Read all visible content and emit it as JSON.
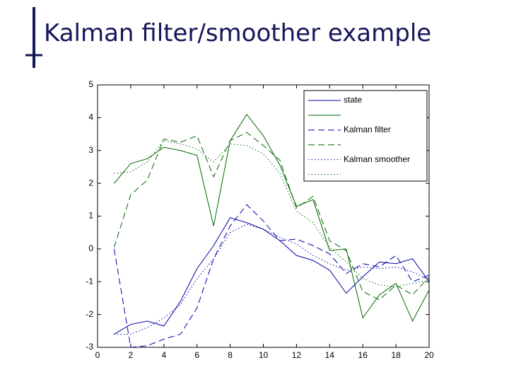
{
  "slide_title": "Kalman filter/smoother example",
  "chart_data": {
    "type": "line",
    "x": [
      1,
      2,
      3,
      4,
      5,
      6,
      7,
      8,
      9,
      10,
      11,
      12,
      13,
      14,
      15,
      16,
      17,
      18,
      19,
      20
    ],
    "xlim": [
      0,
      20
    ],
    "xticks": [
      0,
      2,
      4,
      6,
      8,
      10,
      12,
      14,
      16,
      18,
      20
    ],
    "ylim": [
      -3,
      5
    ],
    "yticks": [
      -3,
      -2,
      -1,
      0,
      1,
      2,
      3,
      4,
      5
    ],
    "grid": false,
    "legend": "upper right",
    "series": [
      {
        "name": "state",
        "color": "#0000aa",
        "dash": "solid",
        "values": [
          -2.6,
          -2.3,
          -2.2,
          -2.35,
          -1.6,
          -0.6,
          0.1,
          0.95,
          0.8,
          0.6,
          0.25,
          -0.2,
          -0.35,
          -0.65,
          -1.35,
          -0.85,
          -0.4,
          -0.45,
          -0.3,
          -1.0
        ]
      },
      {
        "color": "#006600",
        "dash": "solid",
        "values": [
          2.0,
          2.6,
          2.75,
          3.1,
          3.0,
          2.85,
          0.7,
          3.3,
          4.1,
          3.45,
          2.55,
          1.3,
          1.5,
          -0.05,
          0.0,
          -2.1,
          -1.4,
          -1.05,
          -2.2,
          -1.25
        ]
      },
      {
        "name": "Kalman filter",
        "color": "#0000aa",
        "dash": "dashed",
        "values": [
          0.0,
          -3.0,
          -2.95,
          -2.75,
          -2.6,
          -1.8,
          -0.3,
          0.7,
          1.35,
          0.85,
          0.25,
          0.3,
          0.1,
          -0.15,
          -0.75,
          -0.45,
          -0.55,
          -0.2,
          -1.0,
          -0.8
        ]
      },
      {
        "color": "#006600",
        "dash": "dashed",
        "values": [
          0.05,
          1.65,
          2.1,
          3.35,
          3.25,
          3.45,
          2.2,
          3.3,
          3.55,
          3.15,
          2.7,
          1.25,
          1.6,
          0.25,
          -0.05,
          -1.3,
          -1.55,
          -1.1,
          -1.4,
          -0.85
        ]
      },
      {
        "name": "Kalman smoother",
        "color": "#0000aa",
        "dash": "dotted",
        "values": [
          -2.6,
          -2.6,
          -2.4,
          -2.1,
          -1.7,
          -0.9,
          -0.3,
          0.5,
          0.75,
          0.6,
          0.35,
          0.15,
          -0.2,
          -0.45,
          -0.65,
          -0.55,
          -0.6,
          -0.55,
          -0.7,
          -0.95
        ]
      },
      {
        "color": "#006600",
        "dash": "dotted",
        "values": [
          2.3,
          2.35,
          2.65,
          3.3,
          3.2,
          3.05,
          2.65,
          3.2,
          3.15,
          2.9,
          2.3,
          1.15,
          0.8,
          0.05,
          -0.4,
          -0.9,
          -1.1,
          -1.15,
          -1.05,
          -0.95
        ]
      }
    ]
  }
}
